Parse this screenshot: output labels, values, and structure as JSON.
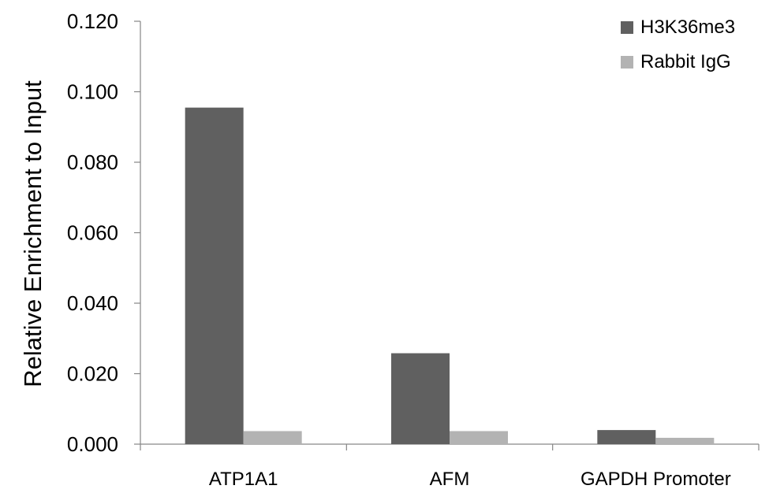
{
  "chart_data": {
    "type": "bar",
    "title": "",
    "xlabel": "",
    "ylabel": "Relative Enrichment to Input",
    "categories": [
      "ATP1A1",
      "AFM",
      "GAPDH Promoter"
    ],
    "series": [
      {
        "name": "H3K36me3",
        "values": [
          0.0955,
          0.0258,
          0.004
        ],
        "color": "#606060"
      },
      {
        "name": "Rabbit IgG",
        "values": [
          0.0037,
          0.0037,
          0.0018
        ],
        "color": "#b3b3b3"
      }
    ],
    "ylim": [
      0,
      0.12
    ],
    "yticks": [
      "0.000",
      "0.020",
      "0.040",
      "0.060",
      "0.080",
      "0.100",
      "0.120"
    ],
    "grid": false,
    "legend": "top-right"
  }
}
